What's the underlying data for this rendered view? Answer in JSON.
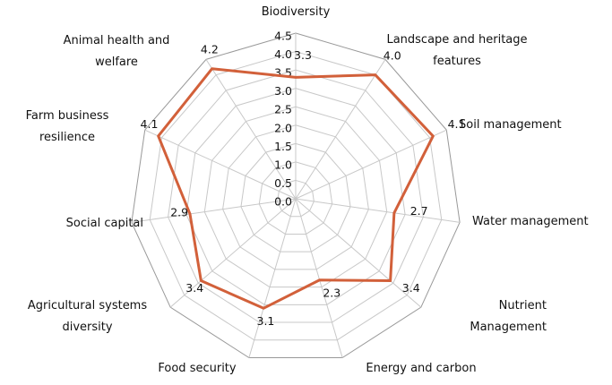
{
  "chart_data": {
    "type": "radar",
    "categories": [
      "Biodiversity",
      "Landscape and heritage features",
      "Soil management",
      "Water management",
      "Nutrient Management",
      "Energy and carbon",
      "Food security",
      "Agricultural systems diversity",
      "Social capital",
      "Farm business resilience",
      "Animal health and welfare"
    ],
    "values": [
      3.3,
      4,
      4.1,
      2.7,
      3.4,
      2.3,
      3.1,
      3.4,
      2.9,
      4.1,
      4.2
    ],
    "value_labels": [
      "3.3",
      "4.0",
      "4.1",
      "2.7",
      "3.4",
      "2.3",
      "3.1",
      "3.4",
      "2.9",
      "4.1",
      "4.2"
    ],
    "color": "#d2603a",
    "ylim": [
      0,
      4.5
    ],
    "yticks": [
      {
        "value": 0,
        "label": "0.0"
      },
      0.5,
      {
        "value": 1,
        "label": "1.0"
      },
      1.5,
      {
        "value": 2,
        "label": "2.0"
      },
      2.5,
      {
        "value": 3,
        "label": "3.0"
      },
      3.5,
      {
        "value": 4,
        "label": "4.0"
      },
      4.5
    ],
    "grid": true
  }
}
